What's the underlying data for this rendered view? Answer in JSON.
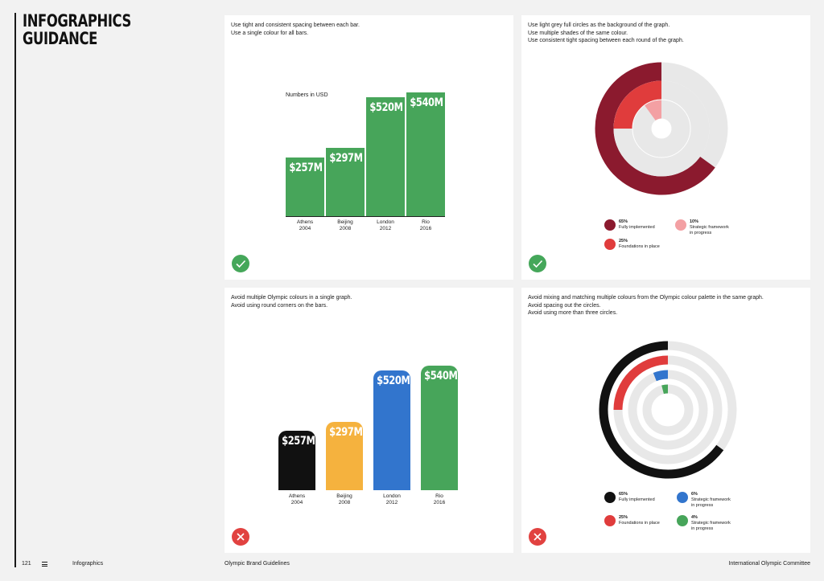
{
  "page": {
    "title": "INFOGRAPHICS\nGUIDANCE",
    "number": "121",
    "section": "Infographics",
    "doc": "Olympic Brand Guidelines",
    "org": "International Olympic Committee"
  },
  "panels": {
    "p1": {
      "lines": [
        "Use tight and consistent spacing between each bar.",
        "Use a single colour for all bars."
      ],
      "status": "correct"
    },
    "p2": {
      "lines": [
        "Use light grey full circles as the background of the graph.",
        "Use multiple shades of the same colour.",
        "Use consistent tight spacing between each round of the graph."
      ],
      "status": "correct"
    },
    "p3": {
      "lines": [
        "Avoid multiple Olympic colours in a single graph.",
        "Avoid using round corners on the bars."
      ],
      "status": "incorrect"
    },
    "p4": {
      "lines": [
        "Avoid mixing and matching multiple colours from the Olympic colour palette in the same graph.",
        "Avoid spacing out the circles.",
        "Avoid using more than three circles."
      ],
      "status": "incorrect"
    }
  },
  "colors": {
    "green": "#47a55a",
    "dark_red": "#8b1a2e",
    "red": "#e03c3c",
    "pink": "#f3a0a3",
    "grey_track": "#e8e8e8",
    "black": "#111111",
    "yellow": "#f5b23e",
    "blue": "#3275cd",
    "ok": "#45a75a",
    "bad": "#e14240"
  },
  "chart_data": [
    {
      "type": "bar",
      "title": "Numbers in USD",
      "categories": [
        "Athens\n2004",
        "Beijing\n2008",
        "London\n2012",
        "Rio\n2016"
      ],
      "values": [
        257,
        297,
        520,
        540
      ],
      "value_labels": [
        "$257M",
        "$297M",
        "$520M",
        "$540M"
      ],
      "ylim": [
        0,
        600
      ],
      "bar_colors": [
        "#47a55a",
        "#47a55a",
        "#47a55a",
        "#47a55a"
      ]
    },
    {
      "type": "pie",
      "rings": [
        {
          "value": 65,
          "label": "65%",
          "name": "Fully implemented",
          "color": "#8b1a2e"
        },
        {
          "value": 25,
          "label": "25%",
          "name": "Foundations in place",
          "color": "#e03c3c"
        },
        {
          "value": 10,
          "label": "10%",
          "name": "Strategic framework\nin progress",
          "color": "#f3a0a3"
        }
      ]
    },
    {
      "type": "bar",
      "categories": [
        "Athens\n2004",
        "Beijing\n2008",
        "London\n2012",
        "Rio\n2016"
      ],
      "values": [
        257,
        297,
        520,
        540
      ],
      "value_labels": [
        "$257M",
        "$297M",
        "$520M",
        "$540M"
      ],
      "ylim": [
        0,
        600
      ],
      "bar_colors": [
        "#111111",
        "#f5b23e",
        "#3275cd",
        "#47a55a"
      ]
    },
    {
      "type": "pie",
      "rings": [
        {
          "value": 65,
          "label": "65%",
          "name": "Fully implemented",
          "color": "#111111"
        },
        {
          "value": 25,
          "label": "25%",
          "name": "Foundations in place",
          "color": "#e03c3c"
        },
        {
          "value": 6,
          "label": "6%",
          "name": "Strategic framework\nin progress",
          "color": "#3275cd"
        },
        {
          "value": 4,
          "label": "4%",
          "name": "Strategic framework\nin progress",
          "color": "#47a55a"
        }
      ]
    }
  ]
}
